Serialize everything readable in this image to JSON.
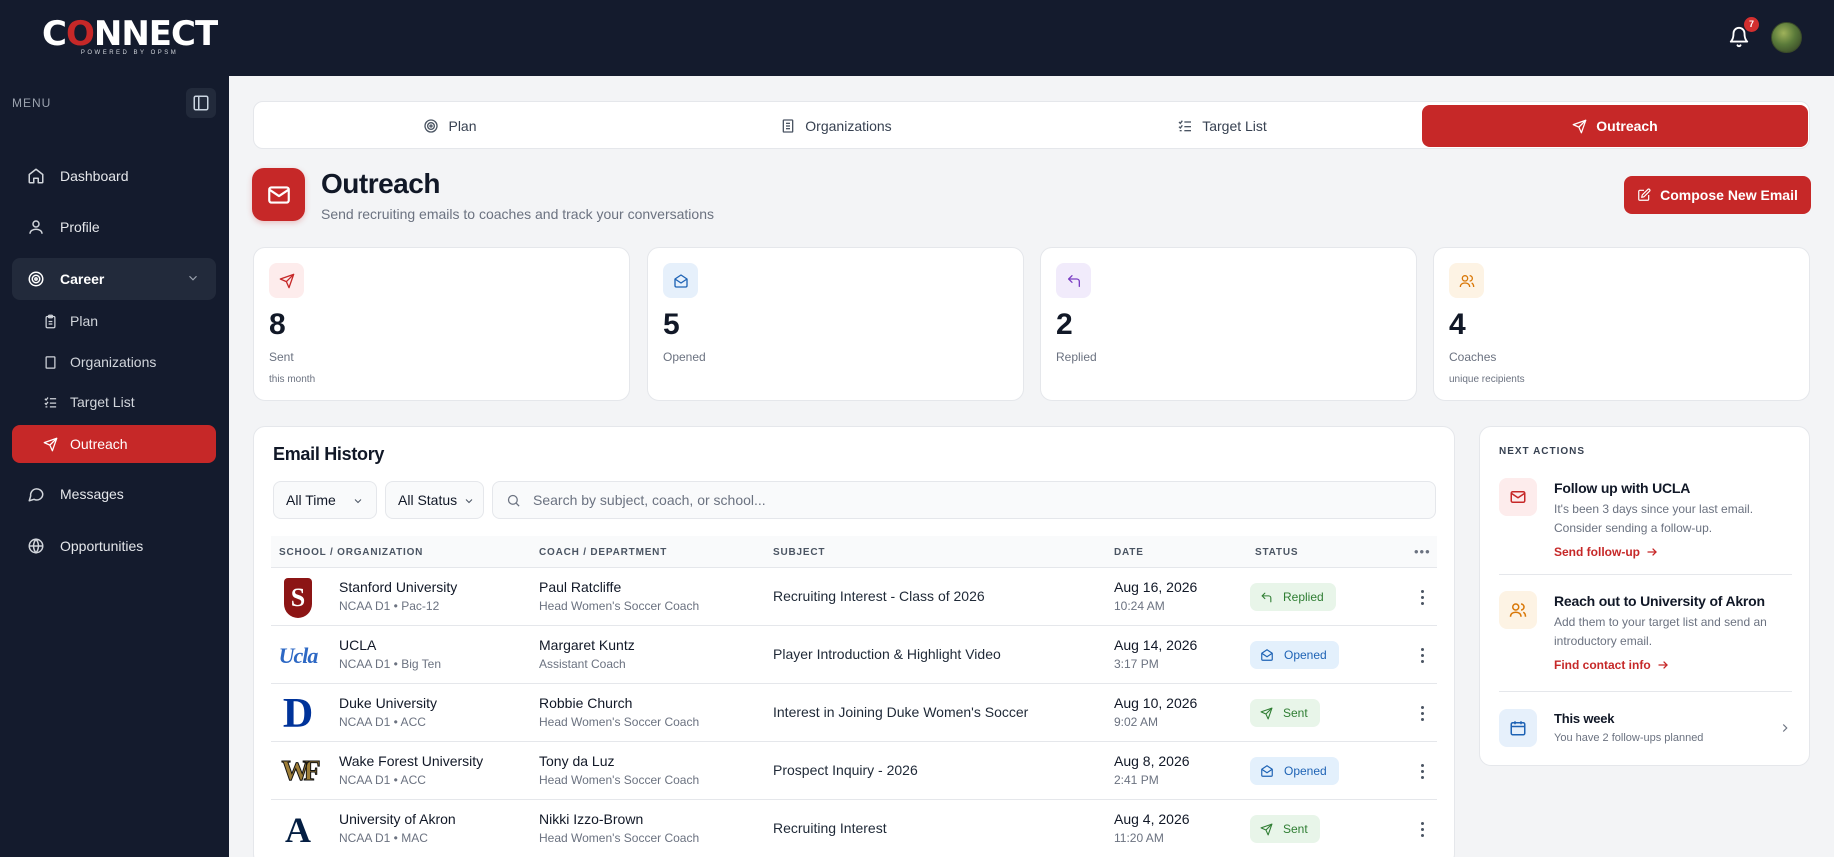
{
  "app": {
    "logo_text_pre": "C",
    "logo_text_o": "O",
    "logo_text_post": "NNECT",
    "logo_sub": "POWERED BY OPSM",
    "notification_count": "7"
  },
  "sidebar": {
    "menu_label": "MENU",
    "items": [
      {
        "label": "Dashboard",
        "icon": "home-icon"
      },
      {
        "label": "Profile",
        "icon": "user-icon"
      },
      {
        "label": "Career",
        "icon": "target-icon"
      },
      {
        "label": "Messages",
        "icon": "chat-icon"
      },
      {
        "label": "Opportunities",
        "icon": "globe-icon"
      }
    ],
    "career_sub": [
      {
        "label": "Plan",
        "icon": "clipboard-icon"
      },
      {
        "label": "Organizations",
        "icon": "building-icon"
      },
      {
        "label": "Target List",
        "icon": "checklist-icon"
      },
      {
        "label": "Outreach",
        "icon": "send-icon"
      }
    ]
  },
  "tabs": [
    {
      "label": "Plan",
      "icon": "target-icon"
    },
    {
      "label": "Organizations",
      "icon": "building-icon"
    },
    {
      "label": "Target List",
      "icon": "checklist-icon"
    },
    {
      "label": "Outreach",
      "icon": "send-icon",
      "active": true
    }
  ],
  "page": {
    "title": "Outreach",
    "subtitle": "Send recruiting emails to coaches and track your conversations",
    "compose_label": "Compose New Email"
  },
  "stats": [
    {
      "value": "8",
      "label": "Sent",
      "sub": "this month",
      "icon": "send-icon",
      "color": "#c62828",
      "bg": "#fdecec"
    },
    {
      "value": "5",
      "label": "Opened",
      "sub": "",
      "icon": "mail-open-icon",
      "color": "#1e63b5",
      "bg": "#e6f0fb"
    },
    {
      "value": "2",
      "label": "Replied",
      "sub": "",
      "icon": "reply-icon",
      "color": "#7b3fc4",
      "bg": "#f1ebfb"
    },
    {
      "value": "4",
      "label": "Coaches",
      "sub": "unique recipients",
      "icon": "users-icon",
      "color": "#d97706",
      "bg": "#fdf3e4"
    }
  ],
  "history": {
    "title": "Email History",
    "filter_time": "All Time",
    "filter_status": "All Status",
    "search_placeholder": "Search by subject, coach, or school...",
    "columns": [
      "SCHOOL / ORGANIZATION",
      "COACH / DEPARTMENT",
      "SUBJECT",
      "DATE",
      "STATUS"
    ],
    "rows": [
      {
        "school": "Stanford University",
        "school_sub": "NCAA D1 • Pac-12",
        "logo": "S",
        "coach": "Paul Ratcliffe",
        "coach_sub": "Head Women's Soccer Coach",
        "subject": "Recruiting Interest - Class of 2026",
        "date": "Aug 16, 2026",
        "time": "10:24 AM",
        "status": "Replied"
      },
      {
        "school": "UCLA",
        "school_sub": "NCAA D1 • Big Ten",
        "logo": "Ucla",
        "coach": "Margaret Kuntz",
        "coach_sub": "Assistant Coach",
        "subject": "Player Introduction & Highlight Video",
        "date": "Aug 14, 2026",
        "time": "3:17 PM",
        "status": "Opened"
      },
      {
        "school": "Duke University",
        "school_sub": "NCAA D1 • ACC",
        "logo": "D",
        "coach": "Robbie Church",
        "coach_sub": "Head Women's Soccer Coach",
        "subject": "Interest in Joining Duke Women's Soccer",
        "date": "Aug 10, 2026",
        "time": "9:02 AM",
        "status": "Sent"
      },
      {
        "school": "Wake Forest University",
        "school_sub": "NCAA D1 • ACC",
        "logo": "WF",
        "coach": "Tony da Luz",
        "coach_sub": "Head Women's Soccer Coach",
        "subject": "Prospect Inquiry - 2026",
        "date": "Aug 8, 2026",
        "time": "2:41 PM",
        "status": "Opened"
      },
      {
        "school": "University of Akron",
        "school_sub": "NCAA D1 • MAC",
        "logo": "A",
        "coach": "Nikki Izzo-Brown",
        "coach_sub": "Head Women's Soccer Coach",
        "subject": "Recruiting Interest",
        "date": "Aug 4, 2026",
        "time": "11:20 AM",
        "status": "Sent"
      }
    ]
  },
  "next_actions": {
    "title": "NEXT ACTIONS",
    "items": [
      {
        "title": "Follow up with UCLA",
        "desc": "It's been 3 days since your last email. Consider sending a follow-up.",
        "link": "Send follow-up",
        "icon": "mail-icon"
      },
      {
        "title": "Reach out to University of Akron",
        "desc": "Add them to your target list and send an introductory email.",
        "link": "Find contact info",
        "icon": "users-icon"
      }
    ],
    "week": {
      "title": "This week",
      "desc": "You have 2 follow-ups planned",
      "icon": "calendar-icon"
    }
  }
}
